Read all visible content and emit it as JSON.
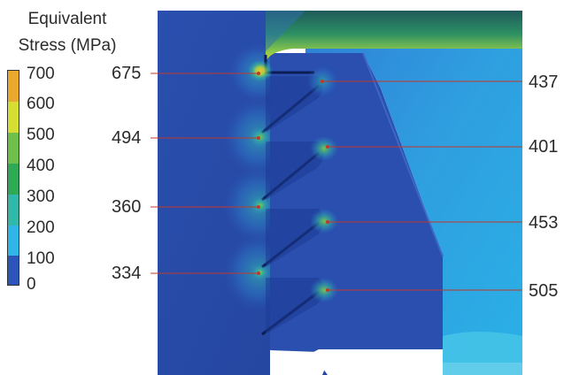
{
  "legend": {
    "title_line1": "Equivalent",
    "title_line2": "Stress (MPa)",
    "ticks": [
      "700",
      "600",
      "500",
      "400",
      "300",
      "200",
      "100",
      "0"
    ],
    "colors": [
      "#e8a92c",
      "#d6dd33",
      "#6fbf4a",
      "#2eaa55",
      "#31b8a8",
      "#2fb5e6",
      "#2c55b9"
    ]
  },
  "left_labels": [
    "675",
    "494",
    "360",
    "334"
  ],
  "right_labels": [
    "437",
    "401",
    "453",
    "505"
  ],
  "leader_color": "#c0392b"
}
